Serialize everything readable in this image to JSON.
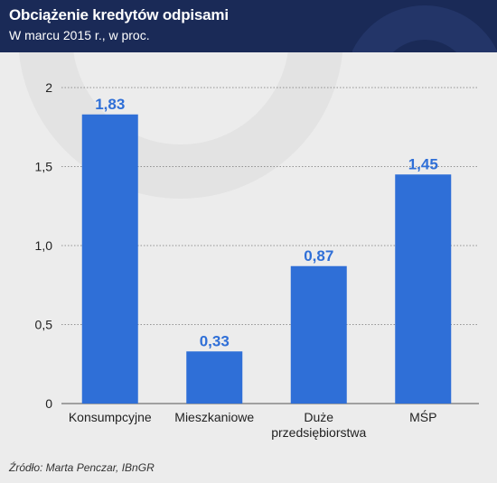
{
  "header": {
    "title": "Obciążenie kredytów odpisami",
    "subtitle": "W marcu 2015 r., w proc."
  },
  "chart_data": {
    "type": "bar",
    "title": "Obciążenie kredytów odpisami",
    "subtitle": "W marcu 2015 r., w proc.",
    "categories": [
      [
        "Konsumpcyjne"
      ],
      [
        "Mieszkaniowe"
      ],
      [
        "Duże",
        "przedsiębiorstwa"
      ],
      [
        "MŚP"
      ]
    ],
    "values": [
      1.83,
      0.33,
      0.87,
      1.45
    ],
    "value_labels": [
      "1,83",
      "0,33",
      "0,87",
      "1,45"
    ],
    "ylim": [
      0,
      2
    ],
    "yticks": [
      0,
      0.5,
      1.0,
      1.5,
      2
    ],
    "ytick_labels": [
      "0",
      "0,5",
      "1,0",
      "1,5",
      "2"
    ],
    "grid": true,
    "bar_color": "#2f6fd7",
    "label_color": "#2f6fd7"
  },
  "source": "Źródło: Marta Penczar, IBnGR"
}
